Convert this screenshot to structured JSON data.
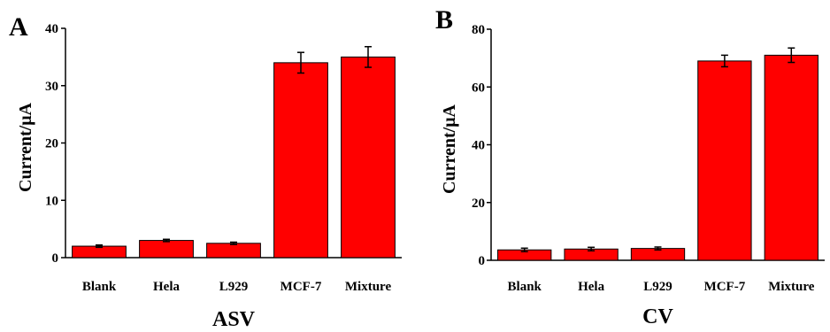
{
  "chart_data": [
    {
      "type": "bar",
      "panel_label": "A",
      "title": "ASV",
      "ylabel": "Current/μA",
      "xlabel": "",
      "categories": [
        "Blank",
        "Hela",
        "L929",
        "MCF-7",
        "Mixture"
      ],
      "values": [
        2.0,
        3.0,
        2.5,
        34.0,
        35.0
      ],
      "errors": [
        0.2,
        0.2,
        0.2,
        1.8,
        1.8
      ],
      "ylim": [
        0,
        40
      ],
      "yticks": [
        0,
        10,
        20,
        30,
        40
      ],
      "bar_color": "#ff0000",
      "grid": false
    },
    {
      "type": "bar",
      "panel_label": "B",
      "title": "CV",
      "ylabel": "Current/μA",
      "xlabel": "",
      "categories": [
        "Blank",
        "Hela",
        "L929",
        "MCF-7",
        "Mixture"
      ],
      "values": [
        3.6,
        3.9,
        4.1,
        69.0,
        71.0
      ],
      "errors": [
        0.6,
        0.6,
        0.5,
        2.0,
        2.5
      ],
      "ylim": [
        0,
        80
      ],
      "yticks": [
        0,
        20,
        40,
        60,
        80
      ],
      "bar_color": "#ff0000",
      "grid": false
    }
  ]
}
